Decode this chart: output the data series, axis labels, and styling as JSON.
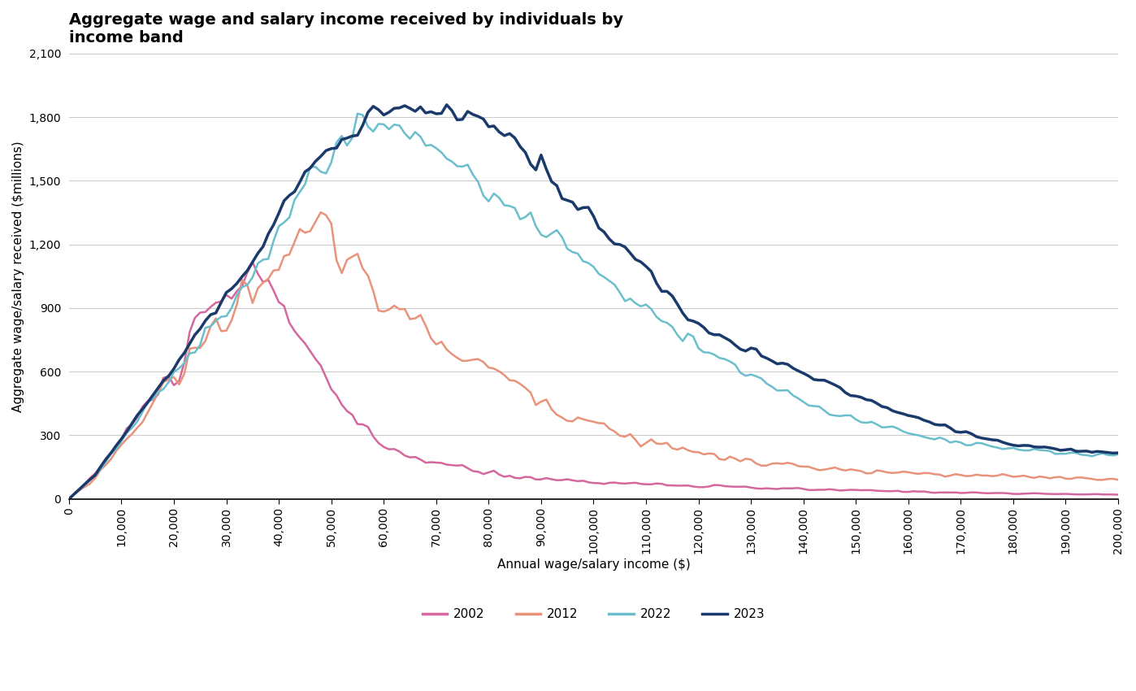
{
  "title": "Aggregate wage and salary income received by individuals by\nincome band",
  "xlabel": "Annual wage/salary income ($)",
  "ylabel": "Aggregate wage/salary received ($millions)",
  "xlim": [
    0,
    200000
  ],
  "ylim": [
    0,
    2100
  ],
  "yticks": [
    0,
    300,
    600,
    900,
    1200,
    1500,
    1800,
    2100
  ],
  "xticks": [
    0,
    10000,
    20000,
    30000,
    40000,
    50000,
    60000,
    70000,
    80000,
    90000,
    100000,
    110000,
    120000,
    130000,
    140000,
    150000,
    160000,
    170000,
    180000,
    190000,
    200000
  ],
  "colors": {
    "2002": "#d4689e",
    "2012": "#e8937a",
    "2022": "#6bbfcc",
    "2023": "#1a3a6b"
  },
  "line_widths": {
    "2002": 1.8,
    "2012": 1.8,
    "2022": 1.8,
    "2023": 2.5
  },
  "legend_labels": [
    "2002",
    "2012",
    "2022",
    "2023"
  ],
  "title_fontsize": 14,
  "label_fontsize": 11,
  "tick_fontsize": 10,
  "background_color": "#ffffff",
  "grid_color": "#cccccc"
}
